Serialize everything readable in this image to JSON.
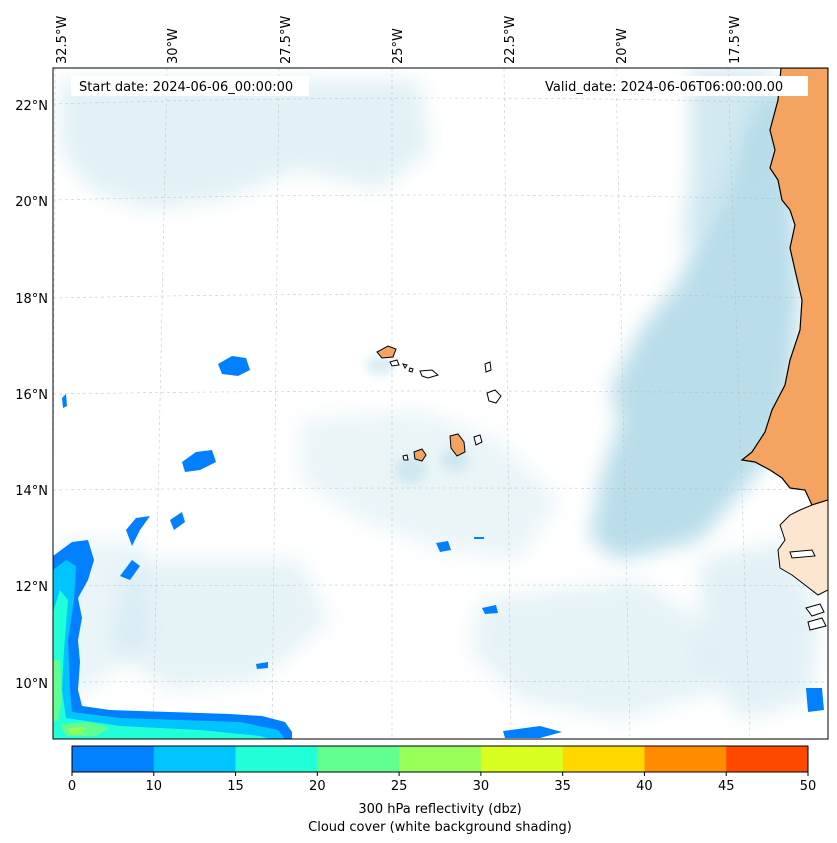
{
  "header": {
    "start_date": "Start date: 2024-06-06_00:00:00",
    "valid_date": "Valid_date: 2024-06-06T06:00:00.00"
  },
  "axes": {
    "lon_labels": [
      "32.5°W",
      "30°W",
      "27.5°W",
      "25°W",
      "22.5°W",
      "20°W",
      "17.5°W"
    ],
    "lat_labels": [
      "22°N",
      "20°N",
      "18°N",
      "16°N",
      "14°N",
      "12°N",
      "10°N"
    ]
  },
  "colorbar": {
    "ticks": [
      "0",
      "10",
      "15",
      "20",
      "25",
      "30",
      "35",
      "40",
      "45",
      "50"
    ],
    "colors": [
      "#0080ff",
      "#00c4ff",
      "#20ffd8",
      "#60ff90",
      "#98ff58",
      "#d8ff20",
      "#ffd800",
      "#ff8c00",
      "#ff4800"
    ],
    "label_line1": "300 hPa reflectivity (dbz)",
    "label_line2": "Cloud cover (white background shading)"
  },
  "colors": {
    "land": "#f4a460",
    "cloud": "#add8e6",
    "reflectivity_low": "#0080ff"
  }
}
